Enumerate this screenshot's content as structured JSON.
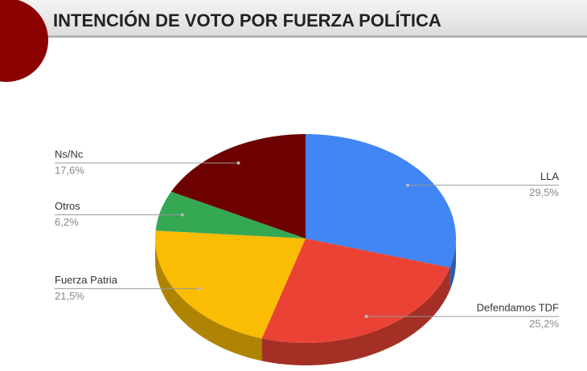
{
  "chart_data": {
    "type": "pie",
    "title": "INTENCIÓN DE VOTO POR FUERZA POLÍTICA",
    "categories": [
      "LLA",
      "Defendamos TDF",
      "Fuerza Patria",
      "Otros",
      "Ns/Nc"
    ],
    "values": [
      29.5,
      25.2,
      21.5,
      6.2,
      17.6
    ],
    "value_labels": [
      "29,5%",
      "25,2%",
      "21,5%",
      "6,2%",
      "17,6%"
    ],
    "colors": [
      "#4285f4",
      "#ea4335",
      "#fbbc04",
      "#34a853",
      "#6d0000"
    ]
  }
}
